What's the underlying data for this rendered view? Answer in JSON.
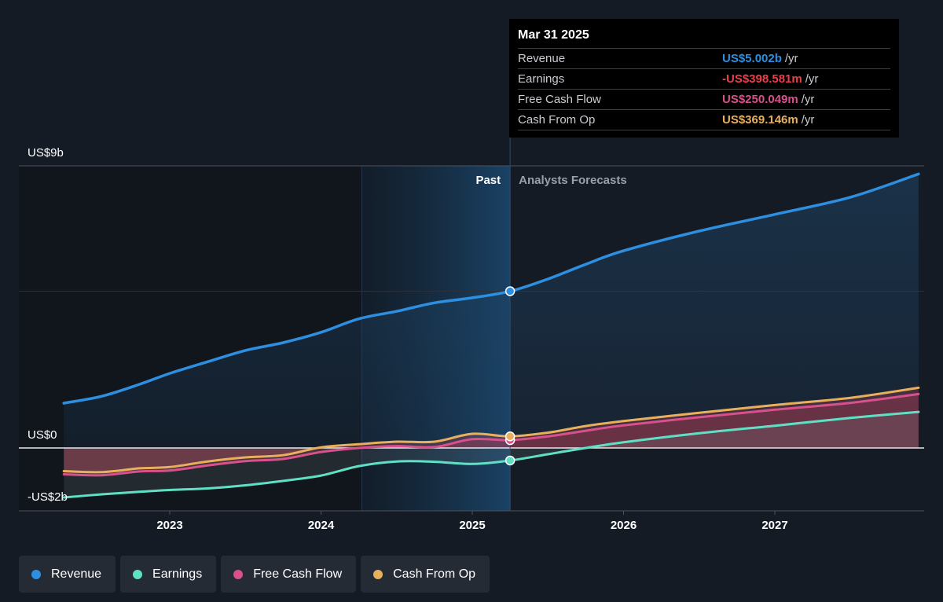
{
  "tooltip": {
    "date": "Mar 31 2025",
    "rows": [
      {
        "label": "Revenue",
        "value": "US$5.002b",
        "unit": "/yr",
        "color": "#2e8fe0"
      },
      {
        "label": "Earnings",
        "value": "-US$398.581m",
        "unit": "/yr",
        "color": "#ea3e4a"
      },
      {
        "label": "Free Cash Flow",
        "value": "US$250.049m",
        "unit": "/yr",
        "color": "#d8508c"
      },
      {
        "label": "Cash From Op",
        "value": "US$369.146m",
        "unit": "/yr",
        "color": "#e8b05c"
      }
    ]
  },
  "legend": [
    {
      "label": "Revenue",
      "color": "#2e8fe0"
    },
    {
      "label": "Earnings",
      "color": "#5fe0c4"
    },
    {
      "label": "Free Cash Flow",
      "color": "#d8508c"
    },
    {
      "label": "Cash From Op",
      "color": "#e8b05c"
    }
  ],
  "chart_data": {
    "type": "line",
    "y_axis_labels": [
      "US$9b",
      "US$0",
      "-US$2b"
    ],
    "x_axis_labels": [
      "2023",
      "2024",
      "2025",
      "2026",
      "2027"
    ],
    "ylim": [
      -2,
      9
    ],
    "region_labels": {
      "past": "Past",
      "forecast": "Analysts Forecasts"
    },
    "highlight_start": 2024.27,
    "forecast_start": 2025.25,
    "series": [
      {
        "name": "Revenue",
        "color": "#2e8fe0",
        "x": [
          2022.3,
          2022.55,
          2022.8,
          2023.0,
          2023.25,
          2023.5,
          2023.75,
          2024.0,
          2024.25,
          2024.5,
          2024.75,
          2025.0,
          2025.25,
          2025.5,
          2025.75,
          2026.0,
          2026.5,
          2027.0,
          2027.5,
          2027.95
        ],
        "y": [
          1.43,
          1.65,
          2.03,
          2.38,
          2.75,
          3.11,
          3.36,
          3.69,
          4.12,
          4.36,
          4.63,
          4.79,
          5.0,
          5.39,
          5.86,
          6.29,
          6.92,
          7.45,
          8.0,
          8.74
        ]
      },
      {
        "name": "Earnings",
        "color": "#5fe0c4",
        "x": [
          2022.3,
          2022.55,
          2022.8,
          2023.0,
          2023.25,
          2023.5,
          2023.75,
          2024.0,
          2024.25,
          2024.5,
          2024.75,
          2025.0,
          2025.25,
          2025.5,
          2025.75,
          2026.0,
          2026.5,
          2027.0,
          2027.5,
          2027.95
        ],
        "y": [
          -1.58,
          -1.48,
          -1.4,
          -1.34,
          -1.29,
          -1.19,
          -1.05,
          -0.88,
          -0.58,
          -0.43,
          -0.44,
          -0.51,
          -0.4,
          -0.2,
          0.0,
          0.18,
          0.47,
          0.71,
          0.96,
          1.15
        ]
      },
      {
        "name": "Free Cash Flow",
        "color": "#d8508c",
        "x": [
          2022.3,
          2022.55,
          2022.8,
          2023.0,
          2023.25,
          2023.5,
          2023.75,
          2024.0,
          2024.25,
          2024.5,
          2024.75,
          2025.0,
          2025.25,
          2025.5,
          2025.75,
          2026.0,
          2026.5,
          2027.0,
          2027.5,
          2027.95
        ],
        "y": [
          -0.84,
          -0.87,
          -0.75,
          -0.72,
          -0.56,
          -0.42,
          -0.35,
          -0.13,
          0.0,
          0.06,
          0.03,
          0.28,
          0.25,
          0.37,
          0.55,
          0.72,
          0.98,
          1.22,
          1.44,
          1.72
        ]
      },
      {
        "name": "Cash From Op",
        "color": "#e8b05c",
        "x": [
          2022.3,
          2022.55,
          2022.8,
          2023.0,
          2023.25,
          2023.5,
          2023.75,
          2024.0,
          2024.25,
          2024.5,
          2024.75,
          2025.0,
          2025.25,
          2025.5,
          2025.75,
          2026.0,
          2026.5,
          2027.0,
          2027.5,
          2027.95
        ],
        "y": [
          -0.74,
          -0.77,
          -0.65,
          -0.61,
          -0.43,
          -0.3,
          -0.23,
          0.02,
          0.12,
          0.2,
          0.2,
          0.45,
          0.37,
          0.49,
          0.7,
          0.86,
          1.12,
          1.37,
          1.6,
          1.92
        ]
      }
    ],
    "markers": [
      {
        "series": "Revenue",
        "x": 2025.25,
        "y": 5.0
      },
      {
        "series": "Earnings",
        "x": 2025.25,
        "y": -0.4
      },
      {
        "series": "Free Cash Flow",
        "x": 2025.25,
        "y": 0.25
      },
      {
        "series": "Cash From Op",
        "x": 2025.25,
        "y": 0.37
      }
    ]
  }
}
